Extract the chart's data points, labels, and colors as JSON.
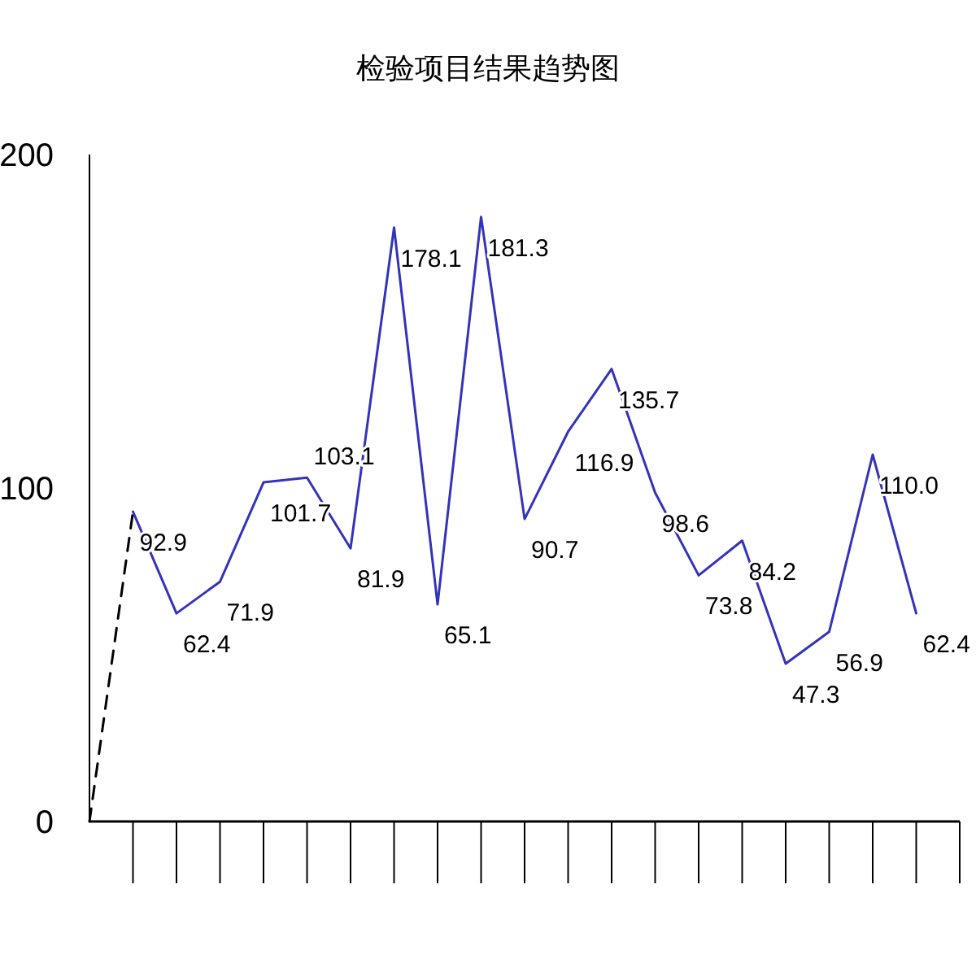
{
  "chart_data": {
    "type": "line",
    "title": "检验项目结果趋势图",
    "categories": [
      null,
      null,
      null,
      null,
      null,
      null,
      null,
      null,
      null,
      null,
      null,
      null,
      null,
      null,
      null,
      null,
      null,
      null,
      null,
      null
    ],
    "series": [
      {
        "type": "line",
        "color": "#000000",
        "line_style": "dashed",
        "values": [
          0,
          92.9,
          null,
          null,
          null,
          null,
          null,
          null,
          null,
          null,
          null,
          null,
          null,
          null,
          null,
          null,
          null,
          null,
          null,
          null
        ]
      },
      {
        "type": "line",
        "color": "#3333bb",
        "line_style": "solid",
        "values": [
          null,
          92.9,
          62.4,
          71.9,
          101.7,
          103.1,
          81.9,
          178.1,
          65.1,
          181.3,
          90.7,
          116.9,
          135.7,
          98.6,
          73.8,
          84.2,
          47.3,
          56.9,
          110.0,
          62.4
        ],
        "value_labels": [
          null,
          "92.9",
          "62.4",
          "71.9",
          "101.7",
          "103.1",
          "81.9",
          "178.1",
          "65.1",
          "181.3",
          "90.7",
          "116.9",
          "135.7",
          "98.6",
          "73.8",
          "84.2",
          "47.3",
          "56.9",
          "110.0",
          "62.4"
        ]
      }
    ],
    "ylim": [
      0,
      200
    ],
    "yticks": [
      0,
      100,
      200
    ]
  }
}
